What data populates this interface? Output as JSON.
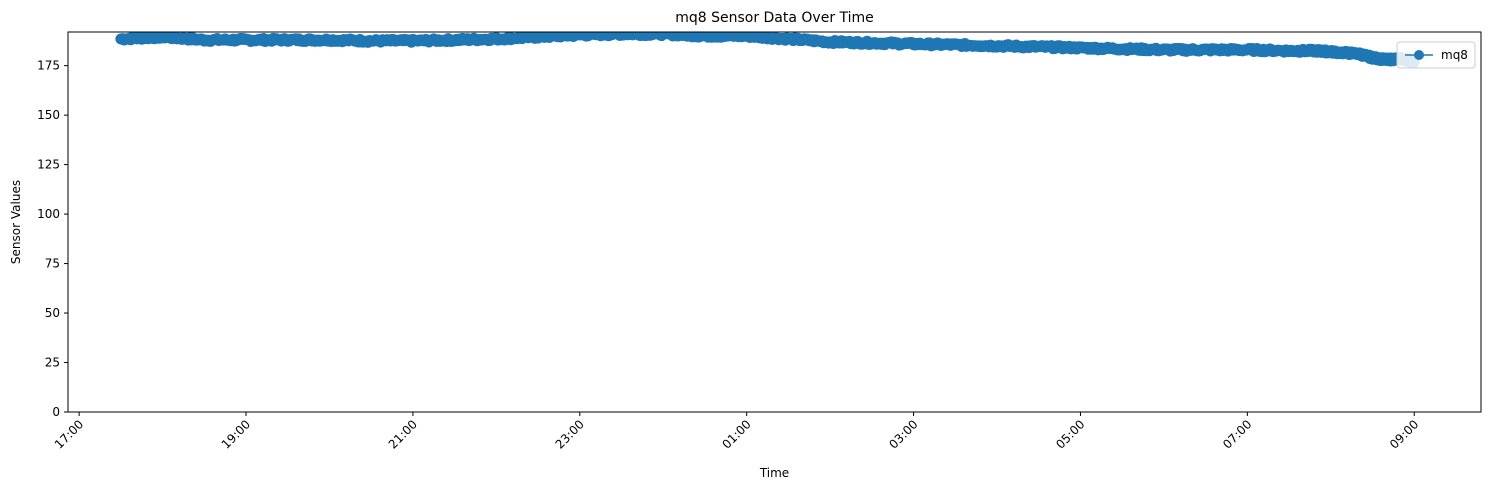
{
  "chart_data": {
    "type": "line",
    "title": "mq8 Sensor Data Over Time",
    "xlabel": "Time",
    "ylabel": "Sensor Values",
    "ylim": [
      0,
      192
    ],
    "xlim": [
      "16:52",
      "09:48"
    ],
    "x_ticks": [
      "17:00",
      "19:00",
      "21:00",
      "23:00",
      "01:00",
      "03:00",
      "05:00",
      "07:00",
      "09:00"
    ],
    "y_ticks": [
      0,
      25,
      50,
      75,
      100,
      125,
      150,
      175
    ],
    "grid": false,
    "legend_position": "top-right",
    "color": "#1f77b4",
    "series": [
      {
        "name": "mq8",
        "marker": "circle",
        "x": [
          "17:30",
          "18:00",
          "18:30",
          "19:00",
          "19:30",
          "20:00",
          "20:30",
          "21:00",
          "21:30",
          "22:00",
          "22:30",
          "23:00",
          "23:30",
          "00:00",
          "00:30",
          "01:00",
          "01:30",
          "02:00",
          "02:30",
          "03:00",
          "03:30",
          "04:00",
          "04:30",
          "05:00",
          "05:30",
          "06:00",
          "06:30",
          "07:00",
          "07:30",
          "07:50",
          "08:00",
          "08:20",
          "08:30",
          "08:40",
          "08:50",
          "09:00"
        ],
        "values": [
          188.5,
          189.5,
          188,
          188,
          188,
          188,
          187.5,
          187.5,
          188,
          188.5,
          189.5,
          190.5,
          191,
          191,
          190,
          190,
          188.5,
          187,
          186.5,
          186,
          185.5,
          185,
          184.5,
          184,
          183.5,
          183,
          183,
          183,
          182.5,
          182.5,
          182,
          181,
          179,
          178,
          178.5,
          177
        ]
      }
    ]
  }
}
